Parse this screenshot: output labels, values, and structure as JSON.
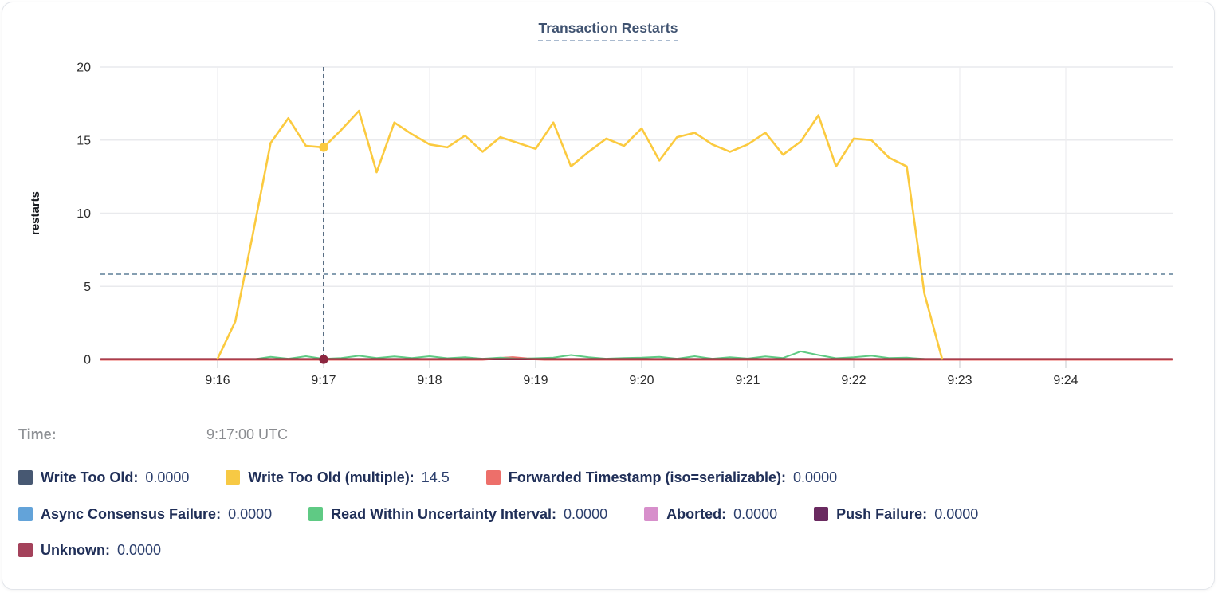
{
  "title": "Transaction Restarts",
  "hover": {
    "time_label": "Time:",
    "time_value": "9:17:00 UTC",
    "hovered_tick": "9:17",
    "t_seconds": 60,
    "crosshair_value": 5.83,
    "points": [
      {
        "series": "Write Too Old (multiple)",
        "value": 14.5,
        "color": "#fbca3f"
      },
      {
        "series": "Unknown",
        "value": 0,
        "color": "#8c2640"
      }
    ]
  },
  "legend": {
    "rows": [
      [
        {
          "label": "Write Too Old:",
          "value": "0.0000",
          "color": "#475872"
        },
        {
          "label": "Write Too Old (multiple):",
          "value": "14.5",
          "color": "#f7c944"
        },
        {
          "label": "Forwarded Timestamp (iso=serializable):",
          "value": "0.0000",
          "color": "#ed6f6a"
        }
      ],
      [
        {
          "label": "Async Consensus Failure:",
          "value": "0.0000",
          "color": "#63a3d9"
        },
        {
          "label": "Read Within Uncertainty Interval:",
          "value": "0.0000",
          "color": "#5fca84"
        },
        {
          "label": "Aborted:",
          "value": "0.0000",
          "color": "#d78fcb"
        },
        {
          "label": "Push Failure:",
          "value": "0.0000",
          "color": "#6a2a60"
        }
      ],
      [
        {
          "label": "Unknown:",
          "value": "0.0000",
          "color": "#a4425b"
        }
      ]
    ]
  },
  "chart_data": {
    "type": "line",
    "title": "Transaction Restarts",
    "xlabel": "",
    "ylabel": "restarts",
    "ylim": [
      0,
      20
    ],
    "yticks": [
      0,
      5,
      10,
      15,
      20
    ],
    "xticks": [
      "9:16",
      "9:17",
      "9:18",
      "9:19",
      "9:20",
      "9:21",
      "9:22",
      "9:23",
      "9:24"
    ],
    "x_unit": "seconds relative to 9:16:00 UTC, samples every 10s",
    "x_domain": [
      -66,
      540
    ],
    "grid": true,
    "legend_position": "bottom",
    "series": [
      {
        "name": "Write Too Old",
        "color": "#475872",
        "z": 1,
        "values": [
          [
            -66,
            0
          ],
          [
            540,
            0
          ]
        ]
      },
      {
        "name": "Async Consensus Failure",
        "color": "#63a3d9",
        "z": 2,
        "values": [
          [
            -66,
            0
          ],
          [
            540,
            0
          ]
        ]
      },
      {
        "name": "Aborted",
        "color": "#d78fcb",
        "z": 3,
        "values": [
          [
            -66,
            0
          ],
          [
            540,
            0
          ]
        ]
      },
      {
        "name": "Push Failure",
        "color": "#6a2a60",
        "z": 4,
        "values": [
          [
            -66,
            0
          ],
          [
            540,
            0
          ]
        ]
      },
      {
        "name": "Forwarded Timestamp (iso=serializable)",
        "color": "#ed6f6a",
        "z": 5,
        "values": [
          [
            -66,
            0
          ],
          [
            150,
            0
          ],
          [
            160,
            0.08
          ],
          [
            167,
            0.13
          ],
          [
            175,
            0.05
          ],
          [
            185,
            0
          ],
          [
            540,
            0
          ]
        ]
      },
      {
        "name": "Read Within Uncertainty Interval",
        "color": "#5fca84",
        "z": 6,
        "values": [
          [
            20,
            0
          ],
          [
            30,
            0.18
          ],
          [
            40,
            0.05
          ],
          [
            50,
            0.22
          ],
          [
            60,
            0.04
          ],
          [
            70,
            0.1
          ],
          [
            80,
            0.25
          ],
          [
            90,
            0.1
          ],
          [
            100,
            0.2
          ],
          [
            110,
            0.1
          ],
          [
            120,
            0.22
          ],
          [
            130,
            0.08
          ],
          [
            140,
            0.15
          ],
          [
            150,
            0.05
          ],
          [
            160,
            0.12
          ],
          [
            170,
            0.04
          ],
          [
            180,
            0.08
          ],
          [
            190,
            0.12
          ],
          [
            200,
            0.3
          ],
          [
            210,
            0.15
          ],
          [
            220,
            0.05
          ],
          [
            230,
            0.1
          ],
          [
            240,
            0.12
          ],
          [
            250,
            0.18
          ],
          [
            260,
            0.05
          ],
          [
            270,
            0.22
          ],
          [
            280,
            0.05
          ],
          [
            290,
            0.15
          ],
          [
            300,
            0.06
          ],
          [
            310,
            0.2
          ],
          [
            320,
            0.1
          ],
          [
            330,
            0.55
          ],
          [
            340,
            0.3
          ],
          [
            350,
            0.08
          ],
          [
            360,
            0.15
          ],
          [
            370,
            0.25
          ],
          [
            380,
            0.1
          ],
          [
            390,
            0.12
          ],
          [
            400,
            0.03
          ],
          [
            410,
            0
          ]
        ]
      },
      {
        "name": "Unknown",
        "color": "#a4425b",
        "line_color": "#9a2c3e",
        "z": 7,
        "values": [
          [
            -66,
            0.02
          ],
          [
            540,
            0.02
          ]
        ]
      },
      {
        "name": "Write Too Old (multiple)",
        "color": "#fbca3f",
        "z": 8,
        "values": [
          [
            0,
            0.05
          ],
          [
            10,
            2.6
          ],
          [
            20,
            8.6
          ],
          [
            30,
            14.8
          ],
          [
            40,
            16.5
          ],
          [
            50,
            14.6
          ],
          [
            60,
            14.5
          ],
          [
            70,
            15.7
          ],
          [
            80,
            17.0
          ],
          [
            90,
            12.8
          ],
          [
            100,
            16.2
          ],
          [
            110,
            15.4
          ],
          [
            120,
            14.7
          ],
          [
            130,
            14.5
          ],
          [
            140,
            15.3
          ],
          [
            150,
            14.2
          ],
          [
            160,
            15.2
          ],
          [
            170,
            14.8
          ],
          [
            180,
            14.4
          ],
          [
            190,
            16.2
          ],
          [
            200,
            13.2
          ],
          [
            210,
            14.2
          ],
          [
            220,
            15.1
          ],
          [
            230,
            14.6
          ],
          [
            240,
            15.8
          ],
          [
            250,
            13.6
          ],
          [
            260,
            15.2
          ],
          [
            270,
            15.5
          ],
          [
            280,
            14.7
          ],
          [
            290,
            14.2
          ],
          [
            300,
            14.7
          ],
          [
            310,
            15.5
          ],
          [
            320,
            14.0
          ],
          [
            330,
            14.9
          ],
          [
            340,
            16.7
          ],
          [
            350,
            13.2
          ],
          [
            360,
            15.1
          ],
          [
            370,
            15.0
          ],
          [
            380,
            13.8
          ],
          [
            390,
            13.2
          ],
          [
            400,
            4.5
          ],
          [
            410,
            0.05
          ]
        ]
      }
    ]
  }
}
